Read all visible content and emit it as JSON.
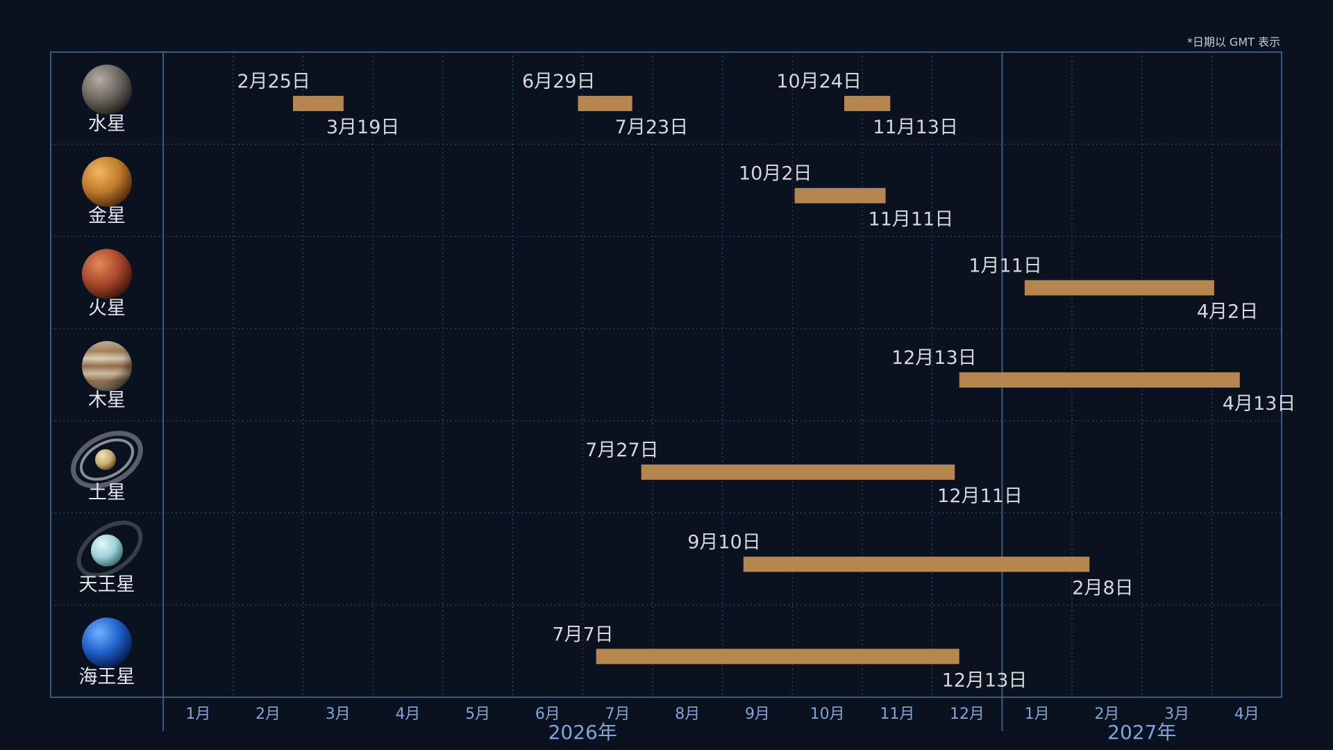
{
  "note": "*日期以 GMT 表示",
  "colors": {
    "background": "#0a1220",
    "bar": "#b5864e",
    "frame": "#3d5a80",
    "grid": "#2e4868",
    "axis_text": "#7fa6d8"
  },
  "chart_data": {
    "type": "gantt",
    "x_axis": {
      "range": [
        "2026-01-01",
        "2027-04-30"
      ],
      "months": [
        "1月",
        "2月",
        "3月",
        "4月",
        "5月",
        "6月",
        "7月",
        "8月",
        "9月",
        "10月",
        "11月",
        "12月",
        "1月",
        "2月",
        "3月",
        "4月"
      ],
      "years": [
        "2026年",
        "2027年"
      ]
    },
    "grid": true,
    "rows": [
      {
        "name": "水星",
        "icon": "mercury-icon",
        "periods": [
          {
            "start": "2026-02-25",
            "end": "2026-03-19",
            "start_label": "2月25日",
            "end_label": "3月19日"
          },
          {
            "start": "2026-06-29",
            "end": "2026-07-23",
            "start_label": "6月29日",
            "end_label": "7月23日"
          },
          {
            "start": "2026-10-24",
            "end": "2026-11-13",
            "start_label": "10月24日",
            "end_label": "11月13日"
          }
        ]
      },
      {
        "name": "金星",
        "icon": "venus-icon",
        "periods": [
          {
            "start": "2026-10-02",
            "end": "2026-11-11",
            "start_label": "10月2日",
            "end_label": "11月11日"
          }
        ]
      },
      {
        "name": "火星",
        "icon": "mars-icon",
        "periods": [
          {
            "start": "2027-01-11",
            "end": "2027-04-02",
            "start_label": "1月11日",
            "end_label": "4月2日"
          }
        ]
      },
      {
        "name": "木星",
        "icon": "jupiter-icon",
        "periods": [
          {
            "start": "2026-12-13",
            "end": "2027-04-13",
            "start_label": "12月13日",
            "end_label": "4月13日"
          }
        ]
      },
      {
        "name": "土星",
        "icon": "saturn-icon",
        "periods": [
          {
            "start": "2026-07-27",
            "end": "2026-12-11",
            "start_label": "7月27日",
            "end_label": "12月11日"
          }
        ]
      },
      {
        "name": "天王星",
        "icon": "uranus-icon",
        "periods": [
          {
            "start": "2026-09-10",
            "end": "2027-02-08",
            "start_label": "9月10日",
            "end_label": "2月8日"
          }
        ]
      },
      {
        "name": "海王星",
        "icon": "neptune-icon",
        "periods": [
          {
            "start": "2026-07-07",
            "end": "2026-12-13",
            "start_label": "7月7日",
            "end_label": "12月13日"
          }
        ]
      }
    ]
  }
}
